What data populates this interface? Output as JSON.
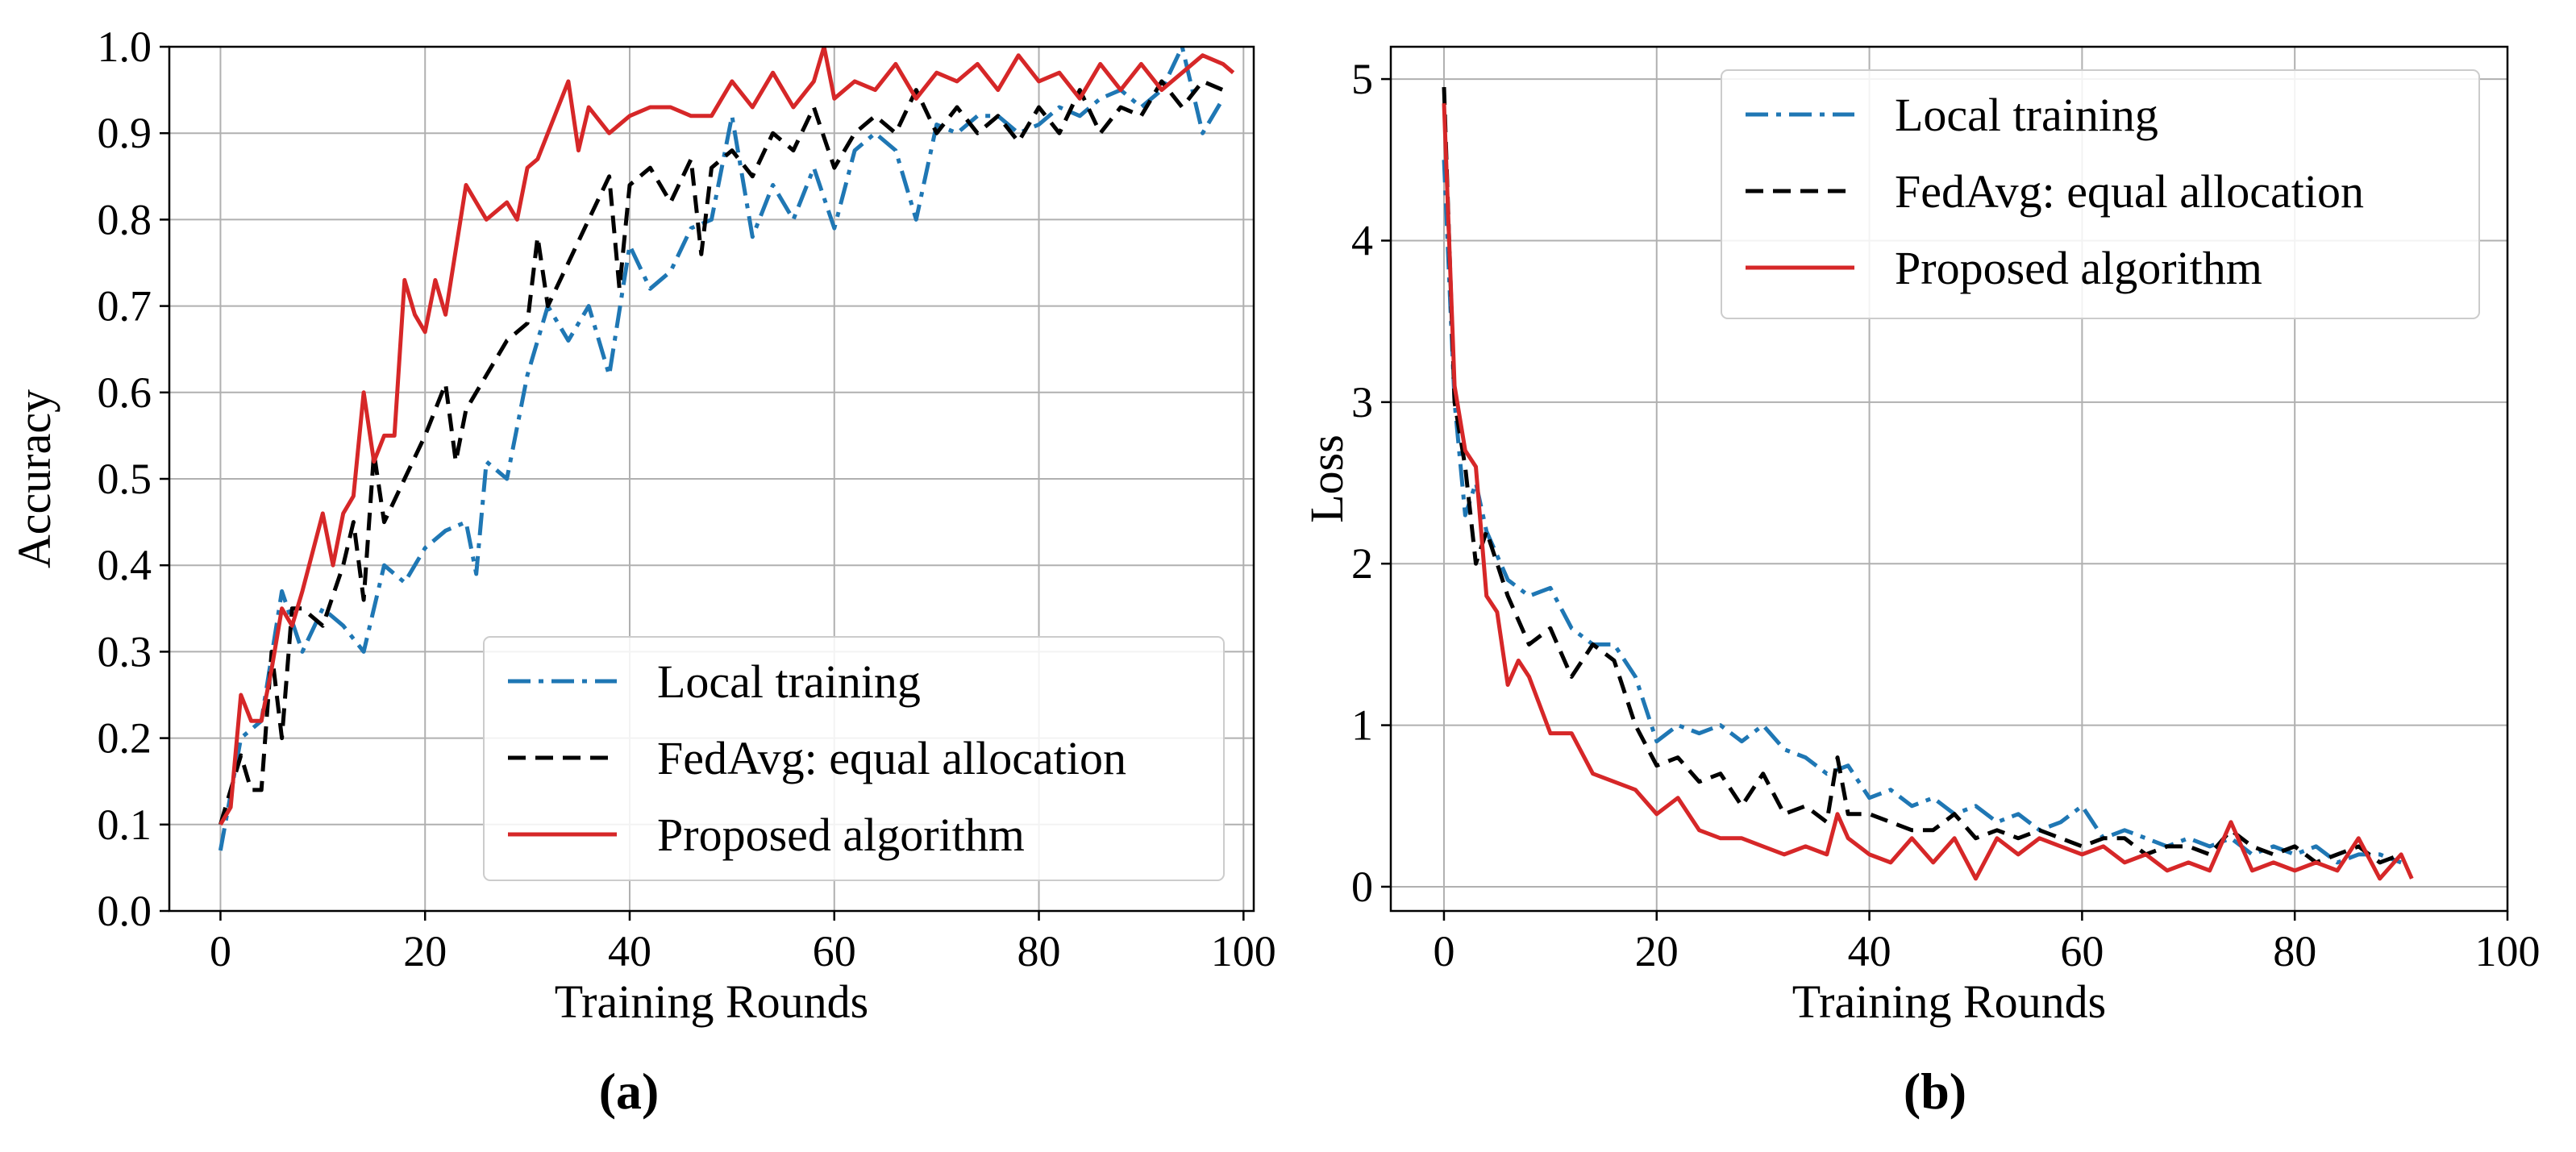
{
  "chart_data": [
    {
      "type": "line",
      "panel_label": "(a)",
      "xlabel": "Training Rounds",
      "ylabel": "Accuracy",
      "xlim": [
        -5,
        101
      ],
      "ylim": [
        0.0,
        1.0
      ],
      "xticks": [
        0,
        20,
        40,
        60,
        80,
        100
      ],
      "xtick_labels": [
        "0",
        "20",
        "40",
        "60",
        "80",
        "100"
      ],
      "yticks": [
        0.0,
        0.1,
        0.2,
        0.3,
        0.4,
        0.5,
        0.6,
        0.7,
        0.8,
        0.9,
        1.0
      ],
      "ytick_labels": [
        "0.0",
        "0.1",
        "0.2",
        "0.3",
        "0.4",
        "0.5",
        "0.6",
        "0.7",
        "0.8",
        "0.9",
        "1.0"
      ],
      "grid": true,
      "legend_position": "lower-right",
      "series": [
        {
          "name": "Local training",
          "color": "#1f77b4",
          "style": "dashdot",
          "x": [
            0,
            2,
            4,
            6,
            8,
            10,
            12,
            14,
            16,
            18,
            20,
            22,
            24,
            25,
            26,
            28,
            30,
            32,
            34,
            36,
            38,
            40,
            42,
            44,
            46,
            48,
            50,
            52,
            54,
            56,
            58,
            60,
            62,
            64,
            66,
            68,
            70,
            72,
            74,
            76,
            78,
            80,
            82,
            84,
            86,
            88,
            90,
            92,
            94,
            96,
            98
          ],
          "values": [
            0.07,
            0.2,
            0.22,
            0.37,
            0.3,
            0.35,
            0.33,
            0.3,
            0.4,
            0.38,
            0.42,
            0.44,
            0.45,
            0.39,
            0.52,
            0.5,
            0.62,
            0.7,
            0.66,
            0.7,
            0.62,
            0.77,
            0.72,
            0.74,
            0.79,
            0.8,
            0.92,
            0.78,
            0.84,
            0.8,
            0.86,
            0.79,
            0.88,
            0.9,
            0.88,
            0.8,
            0.91,
            0.9,
            0.92,
            0.92,
            0.9,
            0.91,
            0.93,
            0.92,
            0.94,
            0.95,
            0.93,
            0.95,
            1.0,
            0.9,
            0.94
          ]
        },
        {
          "name": "FedAvg: equal allocation",
          "color": "#000000",
          "style": "dashed",
          "x": [
            0,
            2,
            3,
            4,
            5,
            6,
            7,
            8,
            10,
            12,
            13,
            14,
            15,
            16,
            18,
            20,
            22,
            23,
            24,
            26,
            28,
            30,
            31,
            32,
            34,
            36,
            38,
            39,
            40,
            42,
            44,
            46,
            47,
            48,
            50,
            52,
            54,
            56,
            58,
            60,
            62,
            64,
            66,
            68,
            70,
            72,
            74,
            76,
            78,
            80,
            82,
            84,
            86,
            88,
            90,
            92,
            94,
            96,
            98
          ],
          "values": [
            0.1,
            0.18,
            0.14,
            0.14,
            0.3,
            0.2,
            0.35,
            0.35,
            0.33,
            0.4,
            0.45,
            0.36,
            0.53,
            0.45,
            0.5,
            0.55,
            0.61,
            0.52,
            0.58,
            0.62,
            0.66,
            0.68,
            0.78,
            0.7,
            0.75,
            0.8,
            0.85,
            0.72,
            0.84,
            0.86,
            0.82,
            0.87,
            0.76,
            0.86,
            0.88,
            0.85,
            0.9,
            0.88,
            0.93,
            0.86,
            0.9,
            0.92,
            0.9,
            0.95,
            0.9,
            0.93,
            0.9,
            0.92,
            0.89,
            0.93,
            0.9,
            0.95,
            0.9,
            0.93,
            0.92,
            0.96,
            0.93,
            0.96,
            0.95
          ]
        },
        {
          "name": "Proposed algorithm",
          "color": "#d62728",
          "style": "solid",
          "x": [
            0,
            1,
            2,
            3,
            4,
            5,
            6,
            7,
            8,
            10,
            11,
            12,
            13,
            14,
            15,
            16,
            17,
            18,
            19,
            20,
            21,
            22,
            24,
            26,
            28,
            29,
            30,
            31,
            32,
            33,
            34,
            35,
            36,
            38,
            40,
            42,
            44,
            46,
            48,
            50,
            52,
            54,
            56,
            58,
            59,
            60,
            62,
            64,
            66,
            68,
            70,
            72,
            74,
            76,
            78,
            80,
            82,
            84,
            86,
            88,
            90,
            92,
            94,
            96,
            98,
            99
          ],
          "values": [
            0.1,
            0.12,
            0.25,
            0.22,
            0.22,
            0.28,
            0.35,
            0.33,
            0.37,
            0.46,
            0.4,
            0.46,
            0.48,
            0.6,
            0.52,
            0.55,
            0.55,
            0.73,
            0.69,
            0.67,
            0.73,
            0.69,
            0.84,
            0.8,
            0.82,
            0.8,
            0.86,
            0.87,
            0.9,
            0.93,
            0.96,
            0.88,
            0.93,
            0.9,
            0.92,
            0.93,
            0.93,
            0.92,
            0.92,
            0.96,
            0.93,
            0.97,
            0.93,
            0.96,
            1.0,
            0.94,
            0.96,
            0.95,
            0.98,
            0.94,
            0.97,
            0.96,
            0.98,
            0.95,
            0.99,
            0.96,
            0.97,
            0.94,
            0.98,
            0.95,
            0.98,
            0.95,
            0.97,
            0.99,
            0.98,
            0.97
          ]
        }
      ]
    },
    {
      "type": "line",
      "panel_label": "(b)",
      "xlabel": "Training Rounds",
      "ylabel": "Loss",
      "xlim": [
        -5,
        100
      ],
      "ylim": [
        -0.15,
        5.2
      ],
      "xticks": [
        0,
        20,
        40,
        60,
        80,
        100
      ],
      "xtick_labels": [
        "0",
        "20",
        "40",
        "60",
        "80",
        "100"
      ],
      "yticks": [
        0,
        1,
        2,
        3,
        4,
        5
      ],
      "ytick_labels": [
        "0",
        "1",
        "2",
        "3",
        "4",
        "5"
      ],
      "grid": true,
      "legend_position": "upper-right",
      "series": [
        {
          "name": "Local training",
          "color": "#1f77b4",
          "style": "dashdot",
          "x": [
            0,
            1,
            2,
            3,
            4,
            6,
            8,
            10,
            12,
            14,
            16,
            18,
            20,
            22,
            24,
            26,
            28,
            30,
            32,
            34,
            36,
            38,
            40,
            42,
            44,
            46,
            48,
            50,
            52,
            54,
            56,
            58,
            60,
            62,
            64,
            66,
            68,
            70,
            72,
            74,
            76,
            78,
            80,
            82,
            84,
            86,
            88,
            90
          ],
          "values": [
            4.5,
            3.0,
            2.3,
            2.5,
            2.2,
            1.9,
            1.8,
            1.85,
            1.6,
            1.5,
            1.5,
            1.3,
            0.9,
            1.0,
            0.95,
            1.0,
            0.9,
            1.0,
            0.85,
            0.8,
            0.7,
            0.75,
            0.55,
            0.6,
            0.5,
            0.55,
            0.45,
            0.5,
            0.4,
            0.45,
            0.35,
            0.4,
            0.5,
            0.3,
            0.35,
            0.3,
            0.25,
            0.3,
            0.25,
            0.3,
            0.2,
            0.25,
            0.2,
            0.25,
            0.15,
            0.2,
            0.2,
            0.15
          ]
        },
        {
          "name": "FedAvg: equal allocation",
          "color": "#000000",
          "style": "dashed",
          "x": [
            0,
            1,
            2,
            3,
            4,
            6,
            8,
            10,
            12,
            14,
            16,
            18,
            20,
            22,
            24,
            26,
            28,
            30,
            32,
            34,
            36,
            37,
            38,
            40,
            42,
            44,
            46,
            48,
            50,
            52,
            54,
            56,
            58,
            60,
            62,
            64,
            66,
            68,
            70,
            72,
            74,
            76,
            78,
            80,
            82,
            84,
            86,
            88,
            90
          ],
          "values": [
            4.95,
            3.0,
            2.6,
            2.0,
            2.2,
            1.8,
            1.5,
            1.6,
            1.3,
            1.5,
            1.4,
            1.0,
            0.75,
            0.8,
            0.65,
            0.7,
            0.5,
            0.7,
            0.45,
            0.5,
            0.4,
            0.8,
            0.45,
            0.45,
            0.4,
            0.35,
            0.35,
            0.45,
            0.3,
            0.35,
            0.3,
            0.35,
            0.3,
            0.25,
            0.3,
            0.3,
            0.2,
            0.25,
            0.25,
            0.2,
            0.35,
            0.25,
            0.2,
            0.25,
            0.15,
            0.2,
            0.25,
            0.15,
            0.2
          ]
        },
        {
          "name": "Proposed algorithm",
          "color": "#d62728",
          "style": "solid",
          "x": [
            0,
            1,
            2,
            3,
            4,
            5,
            6,
            7,
            8,
            10,
            12,
            14,
            16,
            18,
            20,
            22,
            24,
            26,
            28,
            30,
            32,
            34,
            36,
            37,
            38,
            40,
            42,
            44,
            46,
            48,
            50,
            52,
            54,
            56,
            58,
            60,
            62,
            64,
            66,
            68,
            70,
            72,
            74,
            76,
            78,
            80,
            82,
            84,
            86,
            88,
            90,
            91
          ],
          "values": [
            4.85,
            3.1,
            2.7,
            2.6,
            1.8,
            1.7,
            1.25,
            1.4,
            1.3,
            0.95,
            0.95,
            0.7,
            0.65,
            0.6,
            0.45,
            0.55,
            0.35,
            0.3,
            0.3,
            0.25,
            0.2,
            0.25,
            0.2,
            0.45,
            0.3,
            0.2,
            0.15,
            0.3,
            0.15,
            0.3,
            0.05,
            0.3,
            0.2,
            0.3,
            0.25,
            0.2,
            0.25,
            0.15,
            0.2,
            0.1,
            0.15,
            0.1,
            0.4,
            0.1,
            0.15,
            0.1,
            0.15,
            0.1,
            0.3,
            0.05,
            0.2,
            0.05
          ]
        }
      ]
    }
  ]
}
